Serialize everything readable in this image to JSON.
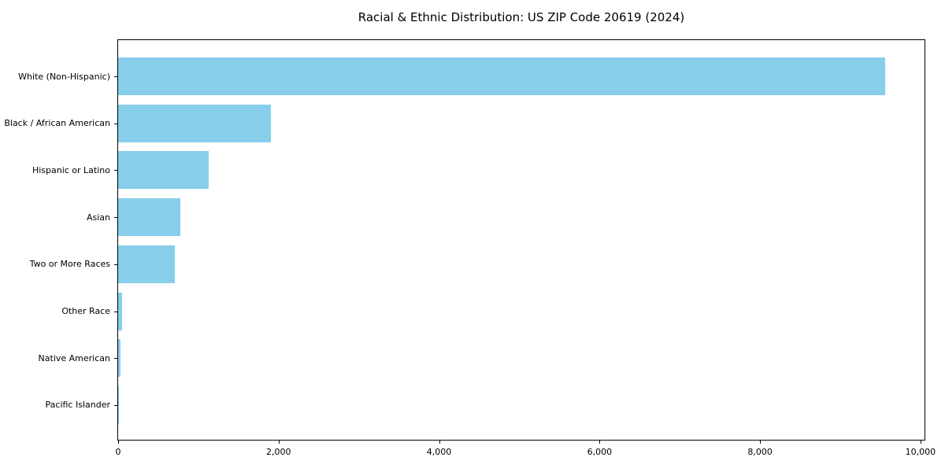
{
  "chart_data": {
    "type": "bar",
    "orientation": "horizontal",
    "title": "Racial & Ethnic Distribution: US ZIP Code 20619 (2024)",
    "categories": [
      "White (Non-Hispanic)",
      "Black / African American",
      "Hispanic or Latino",
      "Asian",
      "Two or More Races",
      "Other Race",
      "Native American",
      "Pacific Islander"
    ],
    "values": [
      9560,
      1900,
      1130,
      780,
      710,
      45,
      30,
      5
    ],
    "xlabel": "",
    "ylabel": "",
    "xlim": [
      0,
      10050
    ],
    "xticks": [
      {
        "value": 0,
        "label": "0"
      },
      {
        "value": 2000,
        "label": "2,000"
      },
      {
        "value": 4000,
        "label": "4,000"
      },
      {
        "value": 6000,
        "label": "6,000"
      },
      {
        "value": 8000,
        "label": "8,000"
      },
      {
        "value": 10000,
        "label": "10,000"
      }
    ],
    "bar_color": "#87CEEB",
    "axis_color": "#000000",
    "background_color": "#FFFFFF",
    "grid": false,
    "legend": null
  }
}
